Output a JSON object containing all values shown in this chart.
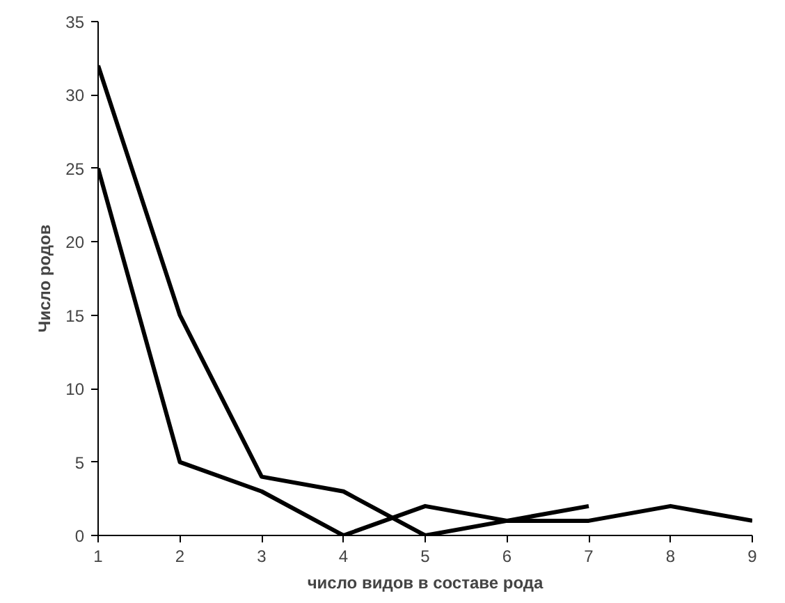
{
  "chart_data": {
    "type": "line",
    "xlabel": "число видов в составе рода",
    "ylabel": "Число родов",
    "series": [
      {
        "color": "#000000",
        "x": [
          1,
          2,
          3,
          4,
          5,
          6,
          7
        ],
        "values": [
          32,
          15,
          4,
          3,
          0,
          1,
          2
        ]
      },
      {
        "color": "#000000",
        "x": [
          1,
          2,
          3,
          4,
          5,
          6,
          7,
          8,
          9
        ],
        "values": [
          25,
          5,
          3,
          0,
          2,
          1,
          1,
          2,
          1
        ]
      }
    ],
    "xlim": [
      1,
      9
    ],
    "xticks": [
      1,
      2,
      3,
      4,
      5,
      6,
      7,
      8,
      9
    ],
    "ylim": [
      0,
      35
    ],
    "yticks": [
      0,
      5,
      10,
      15,
      20,
      25,
      30,
      35
    ],
    "grid": false,
    "marker": "none",
    "line_style": "solid"
  }
}
